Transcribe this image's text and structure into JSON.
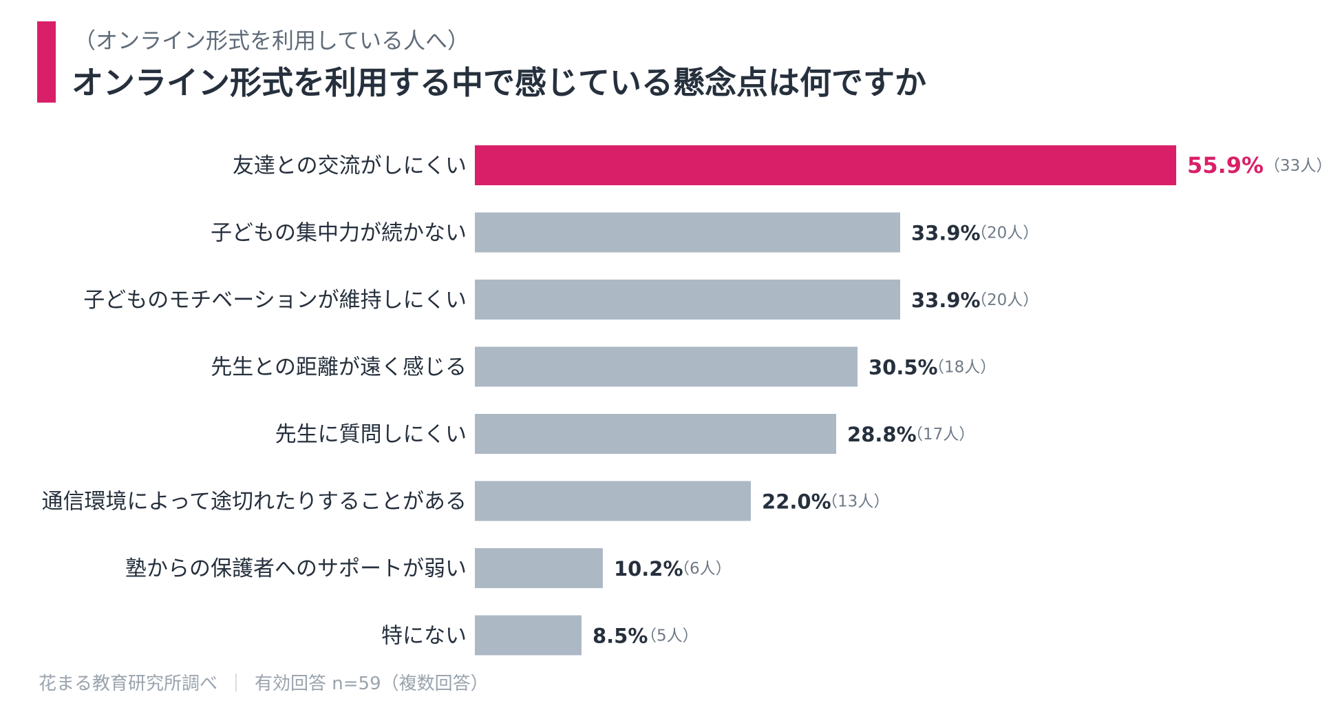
{
  "header": {
    "subtitle": "（オンライン形式を利用している人へ）",
    "title": "オンライン形式を利用する中で感じている懸念点は何ですか"
  },
  "footer": {
    "source": "花まる教育研究所調べ",
    "separator": "｜",
    "note": "有効回答 n=59（複数回答）"
  },
  "colors": {
    "accent": "#d91f68",
    "bar_default": "#adb8c5",
    "bar_highlight": "#d91f68",
    "label_text": "#26303d",
    "count_text": "#6f7a86"
  },
  "chart_data": {
    "type": "bar",
    "orientation": "horizontal",
    "xlim": [
      0,
      100
    ],
    "grid": false,
    "highlight_index": 0,
    "categories": [
      "友達との交流がしにくい",
      "子どもの集中力が続かない",
      "子どものモチベーションが維持しにくい",
      "先生との距離が遠く感じる",
      "先生に質問しにくい",
      "通信環境によって途切れたりすることがある",
      "塾からの保護者へのサポートが弱い",
      "特にない"
    ],
    "values": [
      55.9,
      33.9,
      33.9,
      30.5,
      28.8,
      22.0,
      10.2,
      8.5
    ],
    "value_labels": [
      "55.9%",
      "33.9%",
      "33.9%",
      "30.5%",
      "28.8%",
      "22.0%",
      "10.2%",
      "8.5%"
    ],
    "counts": [
      "（33人）",
      "（20人）",
      "（20人）",
      "（18人）",
      "（17人）",
      "（13人）",
      "（6人）",
      "（5人）"
    ]
  }
}
